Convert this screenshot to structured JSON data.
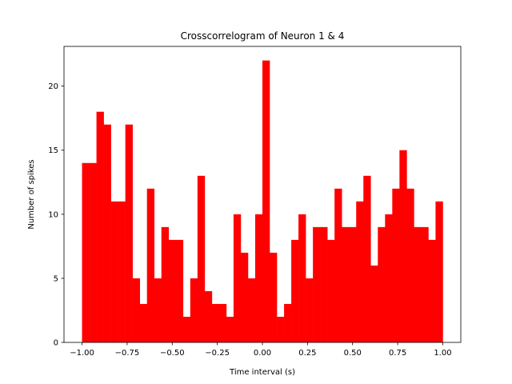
{
  "chart_data": {
    "type": "bar",
    "title": "Crosscorrelogram of Neuron 1 & 4",
    "xlabel": "Time interval (s)",
    "ylabel": "Number of spikes",
    "xlim": [
      -1.1,
      1.1
    ],
    "ylim": [
      0,
      23.1
    ],
    "x_ticks": [
      -1.0,
      -0.75,
      -0.5,
      -0.25,
      0.0,
      0.25,
      0.5,
      0.75,
      1.0
    ],
    "x_tick_labels": [
      "−1.00",
      "−0.75",
      "−0.50",
      "−0.25",
      "0.00",
      "0.25",
      "0.50",
      "0.75",
      "1.00"
    ],
    "y_ticks": [
      0,
      5,
      10,
      15,
      20
    ],
    "y_tick_labels": [
      "0",
      "5",
      "10",
      "15",
      "20"
    ],
    "bar_color": "#ff0000",
    "grid": false,
    "bins": {
      "start": -1.0,
      "end": 1.0,
      "count": 50
    },
    "values": [
      14,
      14,
      18,
      17,
      11,
      11,
      17,
      5,
      3,
      12,
      5,
      9,
      8,
      8,
      2,
      5,
      13,
      4,
      3,
      3,
      2,
      10,
      7,
      5,
      10,
      22,
      7,
      2,
      3,
      8,
      10,
      5,
      9,
      9,
      8,
      12,
      9,
      9,
      11,
      13,
      6,
      9,
      10,
      12,
      15,
      12,
      9,
      9,
      8,
      11
    ]
  }
}
